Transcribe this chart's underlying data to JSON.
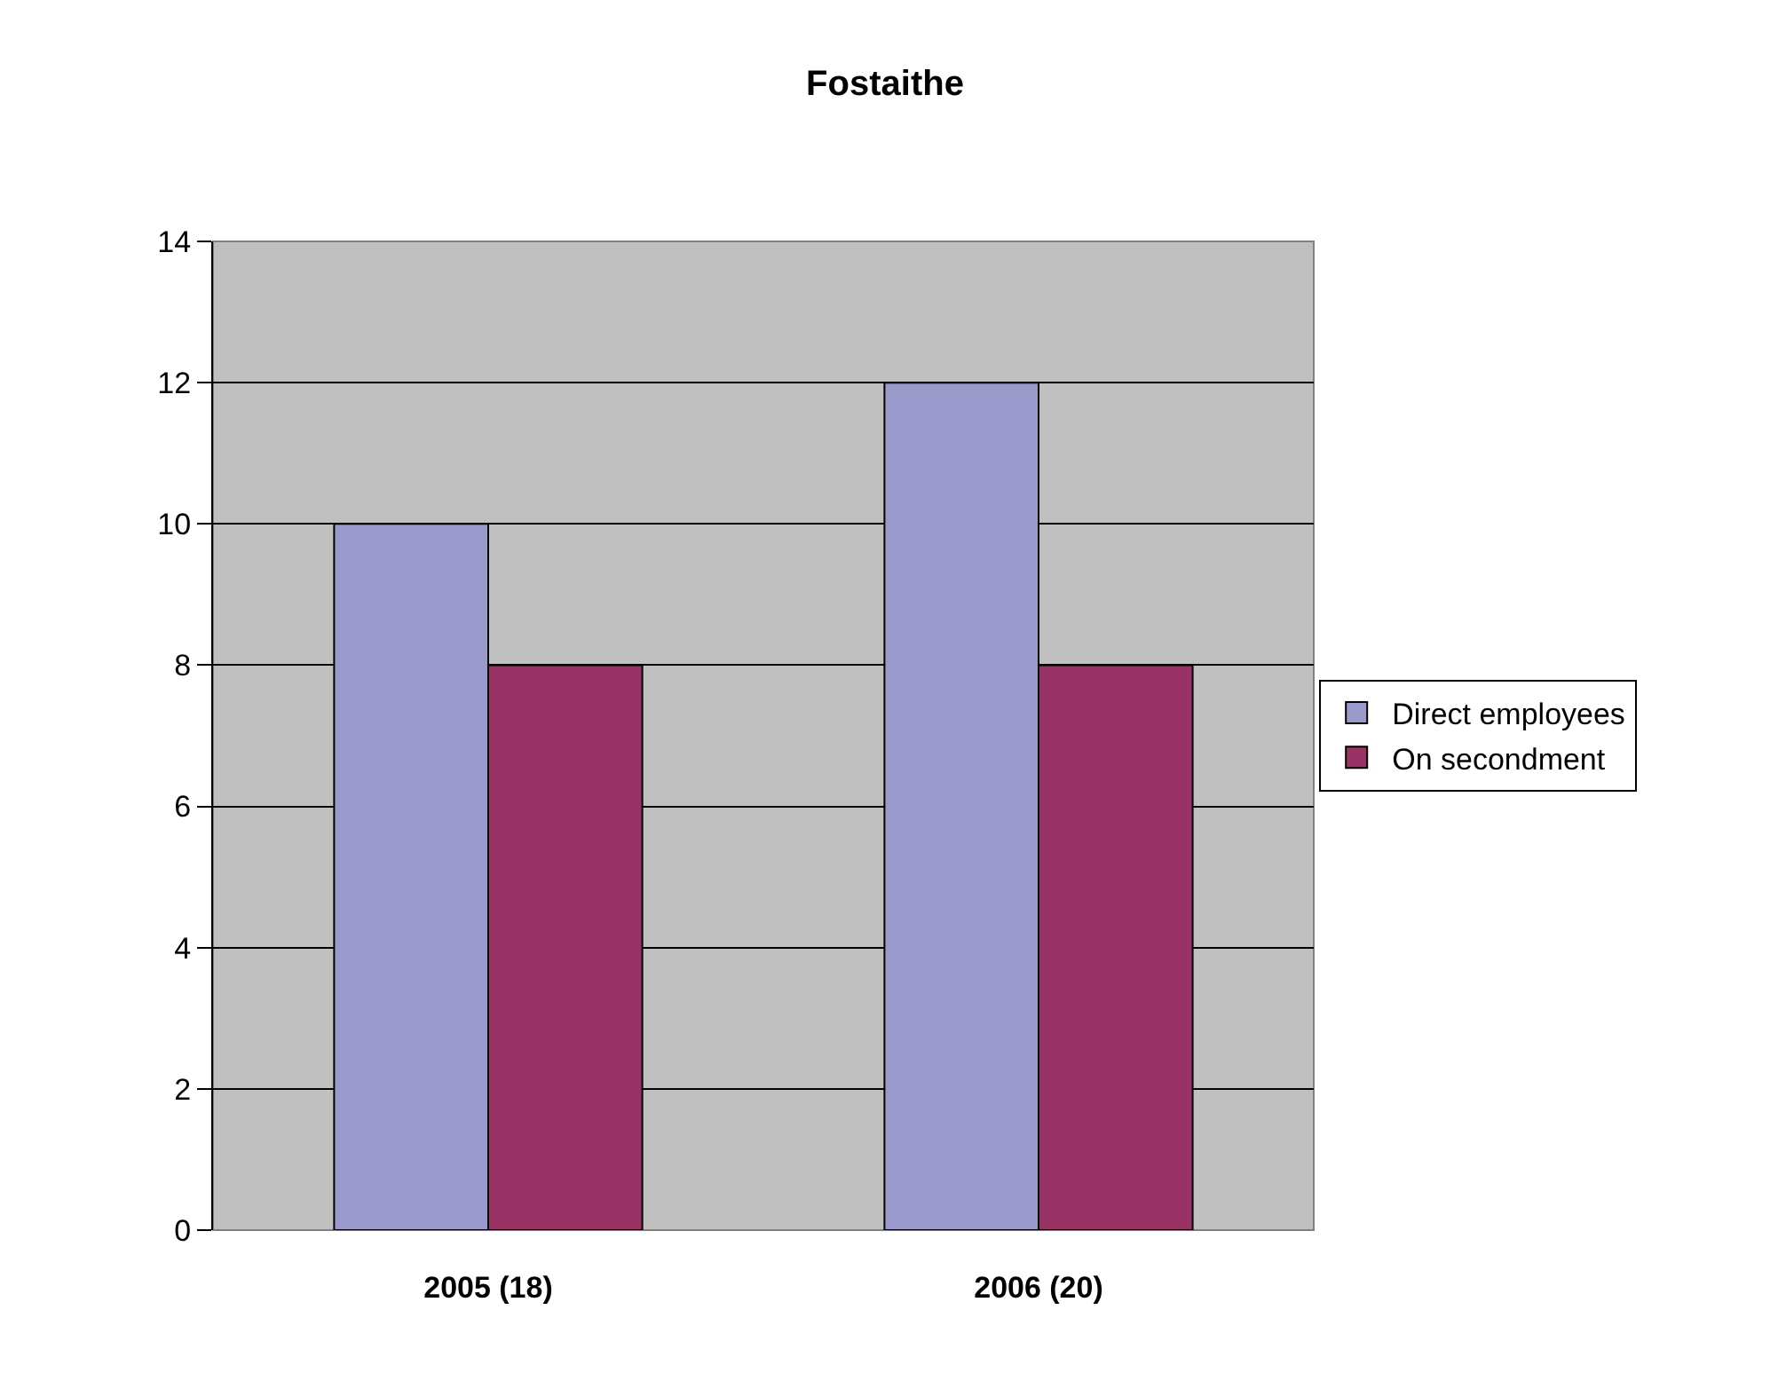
{
  "chart_data": {
    "type": "bar",
    "title": "Fostaithe",
    "categories": [
      "2005 (18)",
      "2006 (20)"
    ],
    "series": [
      {
        "name": "Direct employees",
        "color": "#9999cc",
        "values": [
          10,
          12
        ]
      },
      {
        "name": "On secondment",
        "color": "#993366",
        "values": [
          8,
          8
        ]
      }
    ],
    "ylim": [
      0,
      14
    ],
    "yticks": [
      0,
      2,
      4,
      6,
      8,
      10,
      12,
      14
    ],
    "grid": "y",
    "legend": "right"
  }
}
